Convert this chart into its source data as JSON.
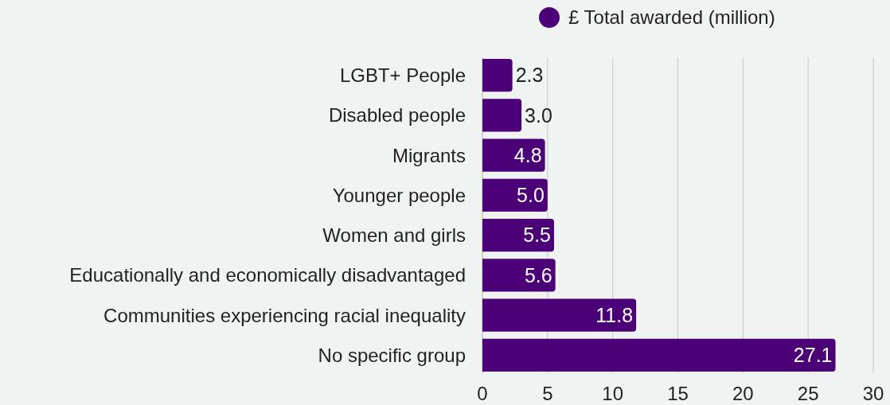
{
  "chart_data": {
    "type": "bar",
    "orientation": "horizontal",
    "categories": [
      "LGBT+ People",
      "Disabled people",
      "Migrants",
      "Younger people",
      "Women and girls",
      "Educationally and economically disadvantaged",
      "Communities experiencing racial inequality",
      "No specific group"
    ],
    "series": [
      {
        "name": "£ Total awarded (million)",
        "color": "#4b0078",
        "values": [
          2.3,
          3.0,
          4.8,
          5.0,
          5.5,
          5.6,
          11.8,
          27.1
        ]
      }
    ],
    "value_labels": [
      "2.3",
      "3.0",
      "4.8",
      "5.0",
      "5.5",
      "5.6",
      "11.8",
      "27.1"
    ],
    "xlim": [
      0,
      30
    ],
    "xticks": [
      0,
      5,
      10,
      15,
      20,
      25,
      30
    ],
    "grid": "x",
    "legend": "top"
  }
}
